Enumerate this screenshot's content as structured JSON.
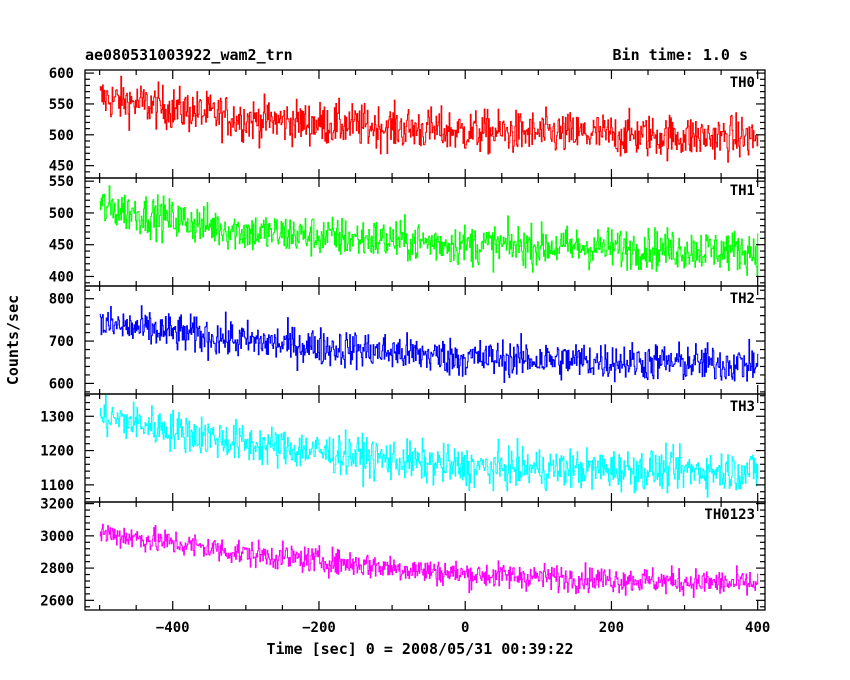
{
  "header": {
    "title": "ae080531003922_wam2_trn",
    "bin_time": "Bin time: 1.0 s"
  },
  "chart_data": {
    "type": "line",
    "xlabel": "Time [sec] 0 = 2008/05/31 00:39:22",
    "ylabel": "Counts/sec",
    "xlim": [
      -520,
      410
    ],
    "x_ticks": [
      -400,
      -200,
      0,
      200,
      400
    ],
    "x_start": -500,
    "x_end": 400,
    "panels": [
      {
        "name": "TH0",
        "color": "#ff0000",
        "ylim": [
          430,
          605
        ],
        "ticks": [
          450,
          500,
          550,
          600
        ],
        "trend": [
          [
            -500,
            560
          ],
          [
            -300,
            525
          ],
          [
            0,
            505
          ],
          [
            400,
            495
          ]
        ],
        "noise": 25,
        "clip": true
      },
      {
        "name": "TH1",
        "color": "#00ff00",
        "ylim": [
          385,
          555
        ],
        "ticks": [
          400,
          450,
          500,
          550
        ],
        "trend": [
          [
            -500,
            510
          ],
          [
            -300,
            470
          ],
          [
            0,
            450
          ],
          [
            400,
            440
          ]
        ],
        "noise": 23,
        "clip": true
      },
      {
        "name": "TH2",
        "color": "#0000ff",
        "ylim": [
          575,
          830
        ],
        "ticks": [
          600,
          700,
          800
        ],
        "trend": [
          [
            -500,
            740
          ],
          [
            -300,
            700
          ],
          [
            0,
            660
          ],
          [
            400,
            645
          ]
        ],
        "noise": 32,
        "clip": true
      },
      {
        "name": "TH3",
        "color": "#00ffff",
        "ylim": [
          1050,
          1365
        ],
        "ticks": [
          1100,
          1200,
          1300
        ],
        "trend": [
          [
            -500,
            1300
          ],
          [
            -300,
            1220
          ],
          [
            0,
            1150
          ],
          [
            400,
            1140
          ]
        ],
        "noise": 42,
        "clip": true
      },
      {
        "name": "TH0123",
        "color": "#ff00ff",
        "ylim": [
          2540,
          3210
        ],
        "ticks": [
          2600,
          2800,
          3000,
          3200
        ],
        "trend": [
          [
            -500,
            3020
          ],
          [
            -300,
            2890
          ],
          [
            0,
            2760
          ],
          [
            400,
            2700
          ]
        ],
        "noise": 58,
        "clip": true
      }
    ]
  }
}
